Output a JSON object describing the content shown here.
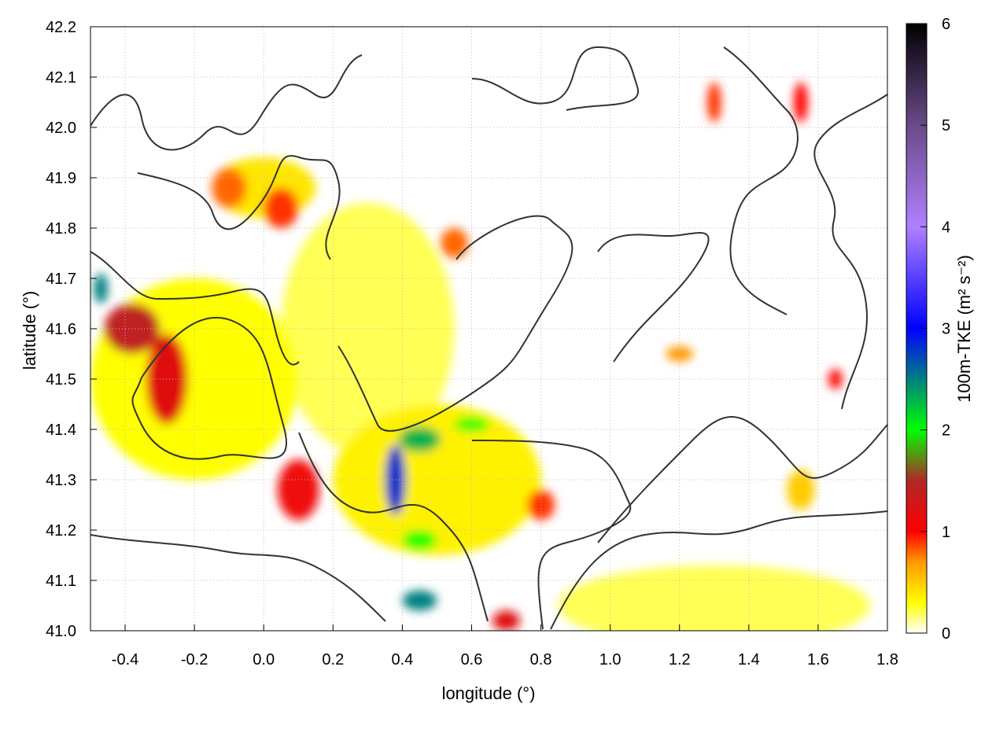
{
  "chart_data": {
    "type": "heatmap",
    "xlabel": "longitude (°)",
    "ylabel": "latitude (°)",
    "colorbar_label": "100m-TKE (m² s⁻²)",
    "xlim": [
      -0.5,
      1.8
    ],
    "ylim": [
      41.0,
      42.2
    ],
    "zlim": [
      0,
      6
    ],
    "xticks": [
      "-0.4",
      "-0.2",
      "0.0",
      "0.2",
      "0.4",
      "0.6",
      "0.8",
      "1.0",
      "1.2",
      "1.4",
      "1.6",
      "1.8"
    ],
    "yticks": [
      "41.0",
      "41.1",
      "41.2",
      "41.3",
      "41.4",
      "41.5",
      "41.6",
      "41.7",
      "41.8",
      "41.9",
      "42.0",
      "42.1",
      "42.2"
    ],
    "cbticks": [
      "0",
      "1",
      "2",
      "3",
      "4",
      "5",
      "6"
    ],
    "grid": true,
    "contours": "black terrain contour lines overlaid",
    "colormap": [
      {
        "v": 0,
        "c": "#ffffff"
      },
      {
        "v": 0.3,
        "c": "#ffff00"
      },
      {
        "v": 0.7,
        "c": "#ff9900"
      },
      {
        "v": 1.0,
        "c": "#ff0000"
      },
      {
        "v": 1.5,
        "c": "#b02828"
      },
      {
        "v": 2.0,
        "c": "#00ff00"
      },
      {
        "v": 2.5,
        "c": "#008080"
      },
      {
        "v": 3.0,
        "c": "#0000ff"
      },
      {
        "v": 4.0,
        "c": "#b080ff"
      },
      {
        "v": 5.0,
        "c": "#6a4a8a"
      },
      {
        "v": 6.0,
        "c": "#000000"
      }
    ],
    "features": [
      {
        "lon": -0.2,
        "lat": 41.5,
        "rlon": 0.3,
        "rlat": 0.2,
        "value": 0.3
      },
      {
        "lon": 0.3,
        "lat": 41.6,
        "rlon": 0.25,
        "rlat": 0.25,
        "value": 0.2
      },
      {
        "lon": 0.5,
        "lat": 41.3,
        "rlon": 0.3,
        "rlat": 0.15,
        "value": 0.35
      },
      {
        "lon": 1.3,
        "lat": 41.05,
        "rlon": 0.45,
        "rlat": 0.08,
        "value": 0.2
      },
      {
        "lon": 0.0,
        "lat": 41.88,
        "rlon": 0.15,
        "rlat": 0.06,
        "value": 0.4
      },
      {
        "lon": -0.1,
        "lat": 41.88,
        "rlon": 0.05,
        "rlat": 0.04,
        "value": 0.8
      },
      {
        "lon": 0.05,
        "lat": 41.84,
        "rlon": 0.05,
        "rlat": 0.04,
        "value": 0.9
      },
      {
        "lon": -0.28,
        "lat": 41.5,
        "rlon": 0.06,
        "rlat": 0.09,
        "value": 1.2
      },
      {
        "lon": -0.38,
        "lat": 41.6,
        "rlon": 0.08,
        "rlat": 0.05,
        "value": 1.4
      },
      {
        "lon": -0.47,
        "lat": 41.68,
        "rlon": 0.02,
        "rlat": 0.03,
        "value": 2.5
      },
      {
        "lon": 0.1,
        "lat": 41.28,
        "rlon": 0.06,
        "rlat": 0.06,
        "value": 1.1
      },
      {
        "lon": 0.38,
        "lat": 41.3,
        "rlon": 0.03,
        "rlat": 0.07,
        "value": 2.8
      },
      {
        "lon": 0.45,
        "lat": 41.38,
        "rlon": 0.06,
        "rlat": 0.025,
        "value": 2.3
      },
      {
        "lon": 0.6,
        "lat": 41.41,
        "rlon": 0.05,
        "rlat": 0.015,
        "value": 2.0
      },
      {
        "lon": 0.45,
        "lat": 41.18,
        "rlon": 0.05,
        "rlat": 0.02,
        "value": 2.0
      },
      {
        "lon": 0.45,
        "lat": 41.06,
        "rlon": 0.05,
        "rlat": 0.02,
        "value": 2.5
      },
      {
        "lon": 0.7,
        "lat": 41.02,
        "rlon": 0.04,
        "rlat": 0.02,
        "value": 1.2
      },
      {
        "lon": 0.8,
        "lat": 41.25,
        "rlon": 0.04,
        "rlat": 0.03,
        "value": 0.9
      },
      {
        "lon": 0.55,
        "lat": 41.77,
        "rlon": 0.04,
        "rlat": 0.03,
        "value": 0.8
      },
      {
        "lon": 1.3,
        "lat": 42.05,
        "rlon": 0.02,
        "rlat": 0.04,
        "value": 0.9
      },
      {
        "lon": 1.55,
        "lat": 42.05,
        "rlon": 0.02,
        "rlat": 0.04,
        "value": 1.0
      },
      {
        "lon": 1.65,
        "lat": 41.5,
        "rlon": 0.02,
        "rlat": 0.02,
        "value": 1.0
      },
      {
        "lon": 1.2,
        "lat": 41.55,
        "rlon": 0.04,
        "rlat": 0.015,
        "value": 0.7
      },
      {
        "lon": 1.55,
        "lat": 41.28,
        "rlon": 0.04,
        "rlat": 0.04,
        "value": 0.5
      }
    ]
  }
}
